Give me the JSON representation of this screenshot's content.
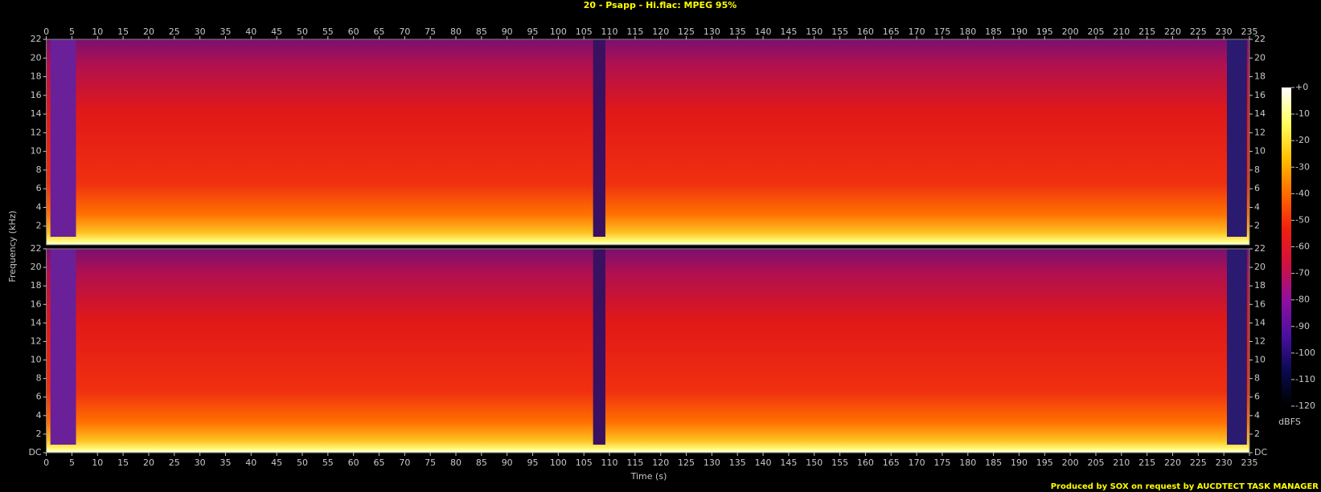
{
  "chart_data": {
    "type": "spectrogram",
    "title": "20 - Psapp - Hi.flac: MPEG 95%",
    "xlabel": "Time (s)",
    "ylabel": "Frequency (kHz)",
    "footer": "Produced by SOX on request by AUCDTECT TASK MANAGER",
    "xlim": [
      0,
      235
    ],
    "xticks": [
      0,
      5,
      10,
      15,
      20,
      25,
      30,
      35,
      40,
      45,
      50,
      55,
      60,
      65,
      70,
      75,
      80,
      85,
      90,
      95,
      100,
      105,
      110,
      115,
      120,
      125,
      130,
      135,
      140,
      145,
      150,
      155,
      160,
      165,
      170,
      175,
      180,
      185,
      190,
      195,
      200,
      205,
      210,
      215,
      220,
      225,
      230,
      235
    ],
    "ylim": [
      0,
      22
    ],
    "yticks": [
      {
        "value": 0,
        "label": "DC"
      },
      2,
      4,
      6,
      8,
      10,
      12,
      14,
      16,
      18,
      20,
      22
    ],
    "colorbar": {
      "label": "dBFS",
      "lim": [
        -120,
        0
      ],
      "ticks": [
        {
          "value": 0,
          "label": "+0"
        },
        -10,
        -20,
        -30,
        -40,
        -50,
        -60,
        -70,
        -80,
        -90,
        -100,
        -110,
        -120
      ],
      "colors": [
        "#000000",
        "#0a0a50",
        "#4a10a0",
        "#9010a0",
        "#d01040",
        "#f02010",
        "#ff6a00",
        "#ffc000",
        "#ffff60",
        "#ffffff"
      ]
    }
  }
}
